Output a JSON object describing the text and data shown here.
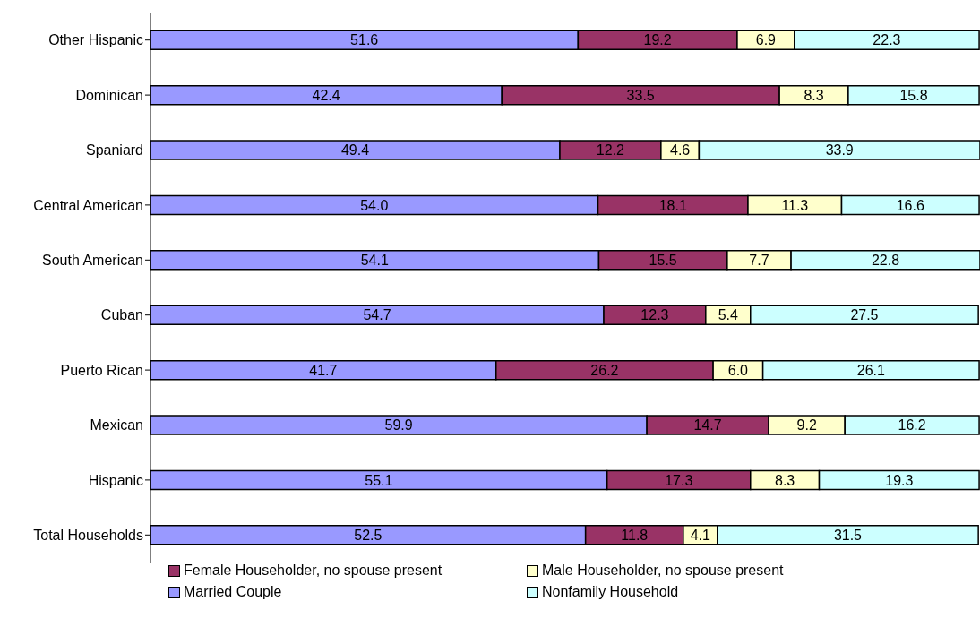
{
  "chart_data": {
    "type": "bar",
    "orientation": "horizontal",
    "stacked": true,
    "legend": "bottom",
    "grid": false,
    "categories": [
      "Other Hispanic",
      "Dominican",
      "Spaniard",
      "Central American",
      "South American",
      "Cuban",
      "Puerto Rican",
      "Mexican",
      "Hispanic",
      "Total Households"
    ],
    "series": [
      {
        "name": "Married Couple",
        "color": "#9999ff",
        "values": [
          51.6,
          42.4,
          49.4,
          54.0,
          54.1,
          54.7,
          41.7,
          59.9,
          55.1,
          52.5
        ],
        "value_labels": [
          "51.6",
          "42.4",
          "49.4",
          "54.0",
          "54.1",
          "54.7",
          "41.7",
          "59.9",
          "55.1",
          "52.5"
        ]
      },
      {
        "name": "Female Householder, no spouse present",
        "color": "#993366",
        "values": [
          19.2,
          33.5,
          12.2,
          18.1,
          15.5,
          12.3,
          26.2,
          14.7,
          17.3,
          11.8
        ],
        "value_labels": [
          "19.2",
          "33.5",
          "12.2",
          "18.1",
          "15.5",
          "12.3",
          "26.2",
          "14.7",
          "17.3",
          "11.8"
        ]
      },
      {
        "name": "Male Householder, no spouse present",
        "color": "#ffffcc",
        "values": [
          6.9,
          8.3,
          4.6,
          11.3,
          7.7,
          5.4,
          6.0,
          9.2,
          8.3,
          4.1
        ],
        "value_labels": [
          "6.9",
          "8.3",
          "4.6",
          "11.3",
          "7.7",
          "5.4",
          "6.0",
          "9.2",
          "8.3",
          "4.1"
        ]
      },
      {
        "name": "Nonfamily Household",
        "color": "#ccffff",
        "values": [
          22.3,
          15.8,
          33.9,
          16.6,
          22.8,
          27.5,
          26.1,
          16.2,
          19.3,
          31.5
        ],
        "value_labels": [
          "22.3",
          "15.8",
          "33.9",
          "16.6",
          "22.8",
          "27.5",
          "26.1",
          "16.2",
          "19.3",
          "31.5"
        ]
      }
    ]
  }
}
